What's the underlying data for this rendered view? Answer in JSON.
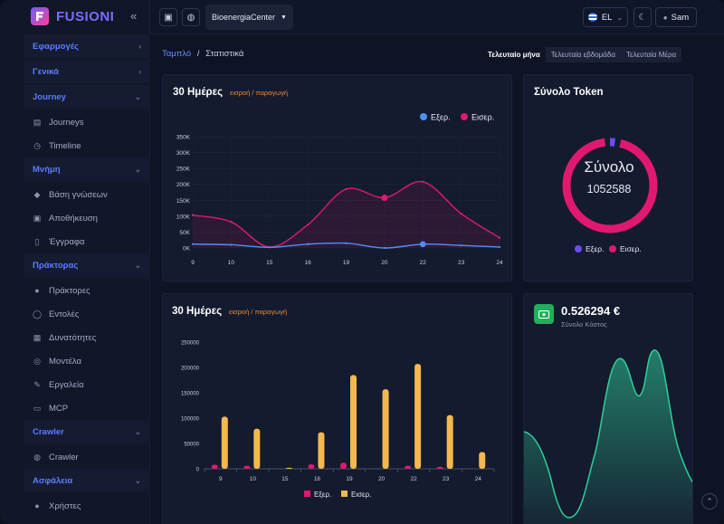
{
  "brand": {
    "name": "FUSIONI"
  },
  "sidebar": {
    "sections": [
      {
        "label": "Εφαρμογές"
      },
      {
        "label": "Γενικά"
      },
      {
        "label": "Journey",
        "items": [
          {
            "label": "Journeys"
          },
          {
            "label": "Timeline"
          }
        ]
      },
      {
        "label": "Μνήμη",
        "items": [
          {
            "label": "Βάση γνώσεων"
          },
          {
            "label": "Αποθήκευση"
          },
          {
            "label": "Έγγραφα"
          }
        ]
      },
      {
        "label": "Πράκτορας",
        "items": [
          {
            "label": "Πράκτορες"
          },
          {
            "label": "Εντολές"
          },
          {
            "label": "Δυνατότητες"
          },
          {
            "label": "Μοντέλα"
          },
          {
            "label": "Εργαλεία"
          },
          {
            "label": "MCP"
          }
        ]
      },
      {
        "label": "Crawler",
        "items": [
          {
            "label": "Crawler"
          }
        ]
      },
      {
        "label": "Ασφάλεια",
        "items": [
          {
            "label": "Χρήστες"
          }
        ]
      }
    ]
  },
  "topbar": {
    "org": "BioenergiaCenter",
    "language": "EL",
    "user": "Sam"
  },
  "breadcrumb": {
    "root": "Ταμπλό",
    "separator": "/",
    "current": "Στατιστικά"
  },
  "ranges": [
    "Τελευταίο μήνα",
    "Τελευταία εβδομάδα",
    "Τελευταία Μέρα"
  ],
  "line_card": {
    "title": "30 Ημέρες",
    "subtitle": "εισροή / παραγωγή"
  },
  "bar_card": {
    "title": "30 Ημέρες",
    "subtitle": "εισροή / παραγωγή"
  },
  "token_card": {
    "title": "Σύνολο Token",
    "center_label": "Σύνολο",
    "center_value": "1052588"
  },
  "cost_card": {
    "value": "0.526294 €",
    "label": "Σύνολο Κόστος"
  },
  "colors": {
    "input": "#4f8ff7",
    "output": "#e0196e",
    "bar_in": "#e0196e",
    "bar_out": "#f5b84d",
    "donut_in": "#6b4cf0",
    "area": "#2fcf9a",
    "accent": "#5b7cff"
  },
  "chart_data": [
    {
      "type": "line",
      "categories": [
        "9",
        "10",
        "15",
        "16",
        "19",
        "20",
        "22",
        "23",
        "24"
      ],
      "series": [
        {
          "name": "Εξερ.",
          "values": [
            12000,
            10000,
            2000,
            12000,
            15000,
            0,
            12000,
            8000,
            3000
          ]
        },
        {
          "name": "Εισερ.",
          "values": [
            103000,
            82000,
            3000,
            73000,
            185000,
            158000,
            208000,
            108000,
            32000
          ]
        }
      ],
      "ylim": [
        0,
        350000
      ],
      "yticks": [
        "0K",
        "50K",
        "100K",
        "150K",
        "200K",
        "250K",
        "300K",
        "350K"
      ],
      "legend": "top-right"
    },
    {
      "type": "bar",
      "categories": [
        "9",
        "10",
        "15",
        "16",
        "19",
        "20",
        "22",
        "23",
        "24"
      ],
      "series": [
        {
          "name": "Εξερ.",
          "values": [
            8000,
            6000,
            0,
            9000,
            12000,
            0,
            6000,
            4000,
            0
          ]
        },
        {
          "name": "Εισερ.",
          "values": [
            103000,
            79000,
            2000,
            72000,
            185000,
            157000,
            207000,
            106000,
            33000
          ]
        }
      ],
      "ylim": [
        0,
        250000
      ],
      "yticks": [
        "0",
        "50000",
        "100000",
        "150000",
        "200000",
        "250000"
      ],
      "legend": "bottom"
    },
    {
      "type": "pie",
      "series": [
        {
          "name": "Εξερ.",
          "values": [
            40000
          ]
        },
        {
          "name": "Εισερ.",
          "values": [
            1012588
          ]
        }
      ],
      "legend": "bottom"
    }
  ]
}
